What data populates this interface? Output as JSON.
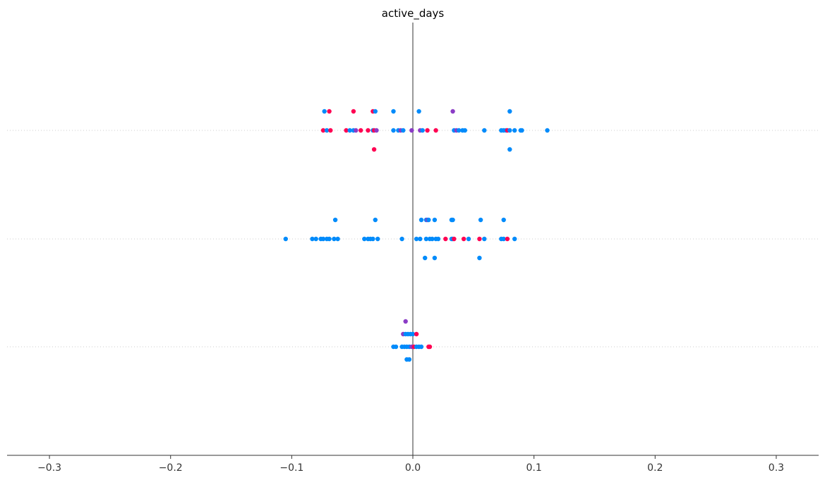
{
  "chart_data": {
    "type": "scatter",
    "title": "active_days",
    "xlabel": "",
    "ylabel": "",
    "xlim": [
      -0.335,
      0.335
    ],
    "xticks": [
      -0.3,
      -0.2,
      -0.1,
      0.0,
      0.1,
      0.2,
      0.3
    ],
    "xtick_labels": [
      "−0.3",
      "−0.2",
      "−0.1",
      "0.0",
      "0.1",
      "0.2",
      "0.3"
    ],
    "grid": false,
    "legend": "none",
    "zero_line": true,
    "colors": {
      "blue": "#008bfb",
      "red": "#ff0052",
      "purple": "#8b3cc6",
      "zero_line": "#999999",
      "row_line": "#cccccc",
      "axis": "#333333"
    },
    "rows": [
      {
        "points": [
          {
            "x": -0.073,
            "j": -1,
            "c": "blue"
          },
          {
            "x": -0.069,
            "j": -1,
            "c": "red"
          },
          {
            "x": -0.049,
            "j": -1,
            "c": "red"
          },
          {
            "x": -0.033,
            "j": -1,
            "c": "red"
          },
          {
            "x": -0.031,
            "j": -1,
            "c": "blue"
          },
          {
            "x": -0.016,
            "j": -1,
            "c": "blue"
          },
          {
            "x": 0.005,
            "j": -1,
            "c": "blue"
          },
          {
            "x": 0.033,
            "j": -1,
            "c": "purple"
          },
          {
            "x": 0.08,
            "j": -1,
            "c": "blue"
          },
          {
            "x": -0.074,
            "j": 0,
            "c": "red"
          },
          {
            "x": -0.071,
            "j": 0,
            "c": "blue"
          },
          {
            "x": -0.068,
            "j": 0,
            "c": "red"
          },
          {
            "x": -0.055,
            "j": 0,
            "c": "red"
          },
          {
            "x": -0.052,
            "j": 0,
            "c": "blue"
          },
          {
            "x": -0.049,
            "j": 0,
            "c": "blue"
          },
          {
            "x": -0.047,
            "j": 0,
            "c": "purple"
          },
          {
            "x": -0.043,
            "j": 0,
            "c": "red"
          },
          {
            "x": -0.037,
            "j": 0,
            "c": "red"
          },
          {
            "x": -0.033,
            "j": 0,
            "c": "blue"
          },
          {
            "x": -0.032,
            "j": 0,
            "c": "red"
          },
          {
            "x": -0.03,
            "j": 0,
            "c": "purple"
          },
          {
            "x": -0.016,
            "j": 0,
            "c": "blue"
          },
          {
            "x": -0.012,
            "j": 0,
            "c": "blue"
          },
          {
            "x": -0.01,
            "j": 0,
            "c": "purple"
          },
          {
            "x": -0.008,
            "j": 0,
            "c": "blue"
          },
          {
            "x": -0.001,
            "j": 0,
            "c": "purple"
          },
          {
            "x": 0.006,
            "j": 0,
            "c": "purple"
          },
          {
            "x": 0.008,
            "j": 0,
            "c": "blue"
          },
          {
            "x": 0.012,
            "j": 0,
            "c": "red"
          },
          {
            "x": 0.019,
            "j": 0,
            "c": "red"
          },
          {
            "x": 0.034,
            "j": 0,
            "c": "blue"
          },
          {
            "x": 0.036,
            "j": 0,
            "c": "purple"
          },
          {
            "x": 0.038,
            "j": 0,
            "c": "blue"
          },
          {
            "x": 0.041,
            "j": 0,
            "c": "blue"
          },
          {
            "x": 0.043,
            "j": 0,
            "c": "blue"
          },
          {
            "x": 0.059,
            "j": 0,
            "c": "blue"
          },
          {
            "x": 0.073,
            "j": 0,
            "c": "blue"
          },
          {
            "x": 0.075,
            "j": 0,
            "c": "blue"
          },
          {
            "x": 0.077,
            "j": 0,
            "c": "blue"
          },
          {
            "x": 0.078,
            "j": 0,
            "c": "red"
          },
          {
            "x": 0.08,
            "j": 0,
            "c": "blue"
          },
          {
            "x": 0.084,
            "j": 0,
            "c": "blue"
          },
          {
            "x": 0.089,
            "j": 0,
            "c": "blue"
          },
          {
            "x": 0.09,
            "j": 0,
            "c": "blue"
          },
          {
            "x": 0.111,
            "j": 0,
            "c": "blue"
          },
          {
            "x": -0.032,
            "j": 1,
            "c": "red"
          },
          {
            "x": 0.08,
            "j": 1,
            "c": "blue"
          }
        ]
      },
      {
        "points": [
          {
            "x": -0.064,
            "j": -1,
            "c": "blue"
          },
          {
            "x": -0.031,
            "j": -1,
            "c": "blue"
          },
          {
            "x": 0.007,
            "j": -1,
            "c": "blue"
          },
          {
            "x": 0.011,
            "j": -1,
            "c": "blue"
          },
          {
            "x": 0.012,
            "j": -1,
            "c": "purple"
          },
          {
            "x": 0.013,
            "j": -1,
            "c": "blue"
          },
          {
            "x": 0.018,
            "j": -1,
            "c": "blue"
          },
          {
            "x": 0.032,
            "j": -1,
            "c": "blue"
          },
          {
            "x": 0.033,
            "j": -1,
            "c": "blue"
          },
          {
            "x": 0.056,
            "j": -1,
            "c": "blue"
          },
          {
            "x": 0.075,
            "j": -1,
            "c": "blue"
          },
          {
            "x": -0.105,
            "j": 0,
            "c": "blue"
          },
          {
            "x": -0.083,
            "j": 0,
            "c": "blue"
          },
          {
            "x": -0.08,
            "j": 0,
            "c": "blue"
          },
          {
            "x": -0.076,
            "j": 0,
            "c": "blue"
          },
          {
            "x": -0.074,
            "j": 0,
            "c": "blue"
          },
          {
            "x": -0.071,
            "j": 0,
            "c": "blue"
          },
          {
            "x": -0.069,
            "j": 0,
            "c": "blue"
          },
          {
            "x": -0.065,
            "j": 0,
            "c": "blue"
          },
          {
            "x": -0.062,
            "j": 0,
            "c": "blue"
          },
          {
            "x": -0.04,
            "j": 0,
            "c": "blue"
          },
          {
            "x": -0.037,
            "j": 0,
            "c": "blue"
          },
          {
            "x": -0.035,
            "j": 0,
            "c": "blue"
          },
          {
            "x": -0.033,
            "j": 0,
            "c": "blue"
          },
          {
            "x": -0.029,
            "j": 0,
            "c": "blue"
          },
          {
            "x": -0.009,
            "j": 0,
            "c": "blue"
          },
          {
            "x": 0.003,
            "j": 0,
            "c": "blue"
          },
          {
            "x": 0.006,
            "j": 0,
            "c": "blue"
          },
          {
            "x": 0.011,
            "j": 0,
            "c": "blue"
          },
          {
            "x": 0.014,
            "j": 0,
            "c": "blue"
          },
          {
            "x": 0.016,
            "j": 0,
            "c": "blue"
          },
          {
            "x": 0.019,
            "j": 0,
            "c": "blue"
          },
          {
            "x": 0.021,
            "j": 0,
            "c": "blue"
          },
          {
            "x": 0.027,
            "j": 0,
            "c": "red"
          },
          {
            "x": 0.032,
            "j": 0,
            "c": "blue"
          },
          {
            "x": 0.033,
            "j": 0,
            "c": "blue"
          },
          {
            "x": 0.034,
            "j": 0,
            "c": "red"
          },
          {
            "x": 0.042,
            "j": 0,
            "c": "red"
          },
          {
            "x": 0.046,
            "j": 0,
            "c": "blue"
          },
          {
            "x": 0.055,
            "j": 0,
            "c": "red"
          },
          {
            "x": 0.059,
            "j": 0,
            "c": "blue"
          },
          {
            "x": 0.073,
            "j": 0,
            "c": "blue"
          },
          {
            "x": 0.075,
            "j": 0,
            "c": "blue"
          },
          {
            "x": 0.078,
            "j": 0,
            "c": "red"
          },
          {
            "x": 0.084,
            "j": 0,
            "c": "blue"
          },
          {
            "x": 0.01,
            "j": 1,
            "c": "blue"
          },
          {
            "x": 0.018,
            "j": 1,
            "c": "blue"
          },
          {
            "x": 0.055,
            "j": 1,
            "c": "blue"
          }
        ]
      },
      {
        "points": [
          {
            "x": -0.006,
            "j": -2,
            "c": "purple"
          },
          {
            "x": -0.008,
            "j": -1,
            "c": "purple"
          },
          {
            "x": -0.006,
            "j": -1,
            "c": "blue"
          },
          {
            "x": -0.004,
            "j": -1,
            "c": "blue"
          },
          {
            "x": -0.002,
            "j": -1,
            "c": "blue"
          },
          {
            "x": 0.0,
            "j": -1,
            "c": "blue"
          },
          {
            "x": 0.003,
            "j": -1,
            "c": "red"
          },
          {
            "x": -0.016,
            "j": 0,
            "c": "blue"
          },
          {
            "x": -0.014,
            "j": 0,
            "c": "blue"
          },
          {
            "x": -0.009,
            "j": 0,
            "c": "blue"
          },
          {
            "x": -0.007,
            "j": 0,
            "c": "blue"
          },
          {
            "x": -0.005,
            "j": 0,
            "c": "blue"
          },
          {
            "x": -0.003,
            "j": 0,
            "c": "blue"
          },
          {
            "x": -0.001,
            "j": 0,
            "c": "purple"
          },
          {
            "x": 0.001,
            "j": 0,
            "c": "red"
          },
          {
            "x": 0.003,
            "j": 0,
            "c": "blue"
          },
          {
            "x": 0.005,
            "j": 0,
            "c": "blue"
          },
          {
            "x": 0.007,
            "j": 0,
            "c": "blue"
          },
          {
            "x": 0.013,
            "j": 0,
            "c": "red"
          },
          {
            "x": 0.014,
            "j": 0,
            "c": "red"
          },
          {
            "x": -0.005,
            "j": 1,
            "c": "blue"
          },
          {
            "x": -0.003,
            "j": 1,
            "c": "blue"
          }
        ]
      }
    ]
  }
}
